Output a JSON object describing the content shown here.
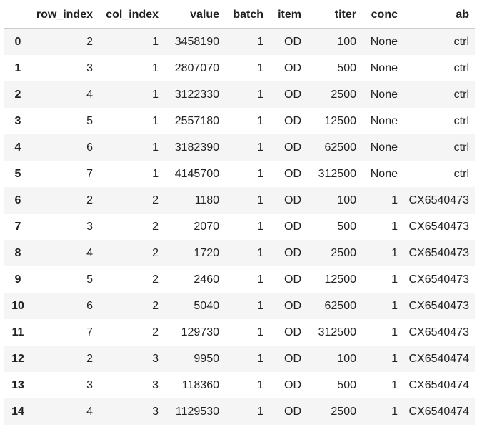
{
  "table": {
    "columns": [
      "",
      "row_index",
      "col_index",
      "value",
      "batch",
      "item",
      "titer",
      "conc",
      "ab"
    ],
    "rows": [
      [
        "0",
        "2",
        "1",
        "3458190",
        "1",
        "OD",
        "100",
        "None",
        "ctrl"
      ],
      [
        "1",
        "3",
        "1",
        "2807070",
        "1",
        "OD",
        "500",
        "None",
        "ctrl"
      ],
      [
        "2",
        "4",
        "1",
        "3122330",
        "1",
        "OD",
        "2500",
        "None",
        "ctrl"
      ],
      [
        "3",
        "5",
        "1",
        "2557180",
        "1",
        "OD",
        "12500",
        "None",
        "ctrl"
      ],
      [
        "4",
        "6",
        "1",
        "3182390",
        "1",
        "OD",
        "62500",
        "None",
        "ctrl"
      ],
      [
        "5",
        "7",
        "1",
        "4145700",
        "1",
        "OD",
        "312500",
        "None",
        "ctrl"
      ],
      [
        "6",
        "2",
        "2",
        "1180",
        "1",
        "OD",
        "100",
        "1",
        "CX6540473"
      ],
      [
        "7",
        "3",
        "2",
        "2070",
        "1",
        "OD",
        "500",
        "1",
        "CX6540473"
      ],
      [
        "8",
        "4",
        "2",
        "1720",
        "1",
        "OD",
        "2500",
        "1",
        "CX6540473"
      ],
      [
        "9",
        "5",
        "2",
        "2460",
        "1",
        "OD",
        "12500",
        "1",
        "CX6540473"
      ],
      [
        "10",
        "6",
        "2",
        "5040",
        "1",
        "OD",
        "62500",
        "1",
        "CX6540473"
      ],
      [
        "11",
        "7",
        "2",
        "129730",
        "1",
        "OD",
        "312500",
        "1",
        "CX6540473"
      ],
      [
        "12",
        "2",
        "3",
        "9950",
        "1",
        "OD",
        "100",
        "1",
        "CX6540474"
      ],
      [
        "13",
        "3",
        "3",
        "118360",
        "1",
        "OD",
        "500",
        "1",
        "CX6540474"
      ],
      [
        "14",
        "4",
        "3",
        "1129530",
        "1",
        "OD",
        "2500",
        "1",
        "CX6540474"
      ]
    ]
  },
  "colors": {
    "stripe": "#f5f5f5",
    "header_rule": "#cccccc",
    "text": "#222222"
  }
}
